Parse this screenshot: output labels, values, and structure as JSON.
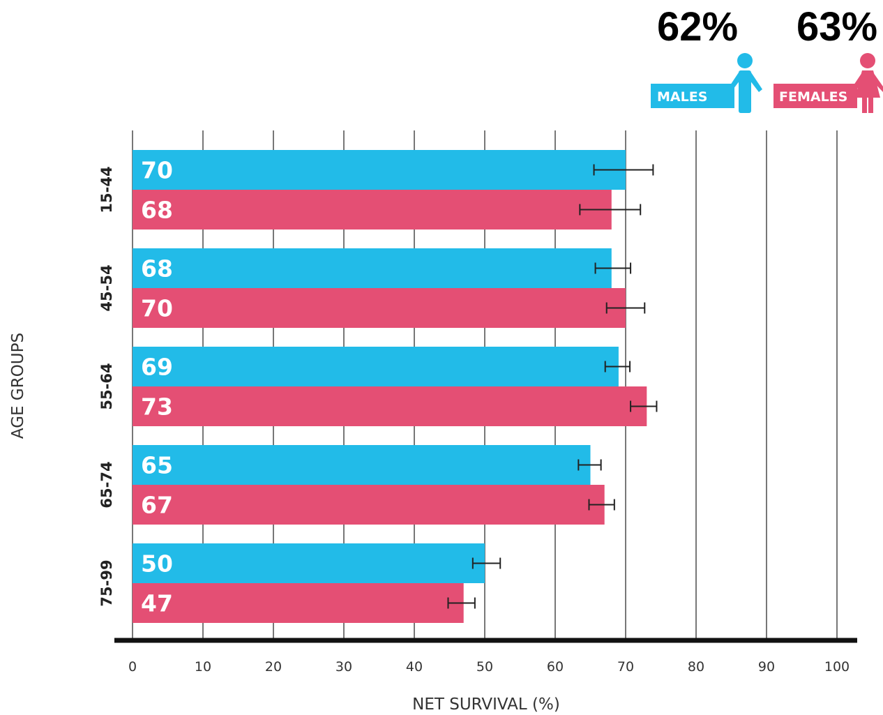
{
  "header": {
    "males_pct": "62%",
    "females_pct": "63%",
    "males_label": "MALES",
    "females_label": "FEMALES"
  },
  "colors": {
    "males": "#22bbe8",
    "females": "#e44f74",
    "grid": "#555555",
    "axis": "#111111"
  },
  "chart_data": {
    "type": "bar",
    "orientation": "horizontal",
    "categories": [
      "15-44",
      "45-54",
      "55-64",
      "65-74",
      "75-99"
    ],
    "series": [
      {
        "name": "MALES",
        "values": [
          70,
          68,
          69,
          65,
          50
        ],
        "ci_low": [
          65.5,
          65.7,
          67.1,
          63.3,
          48.3
        ],
        "ci_high": [
          73.9,
          70.7,
          70.6,
          66.5,
          52.2
        ]
      },
      {
        "name": "FEMALES",
        "values": [
          68,
          70,
          73,
          67,
          47
        ],
        "ci_low": [
          63.5,
          67.3,
          70.7,
          64.8,
          44.8
        ],
        "ci_high": [
          72.1,
          72.7,
          74.4,
          68.4,
          48.6
        ]
      }
    ],
    "xlabel": "NET SURVIVAL (%)",
    "ylabel": "AGE GROUPS",
    "xlim": [
      0,
      100
    ],
    "xticks": [
      0,
      10,
      20,
      30,
      40,
      50,
      60,
      70,
      80,
      90,
      100
    ],
    "grid": true,
    "legend_position": "top-right",
    "error_bars": true
  }
}
